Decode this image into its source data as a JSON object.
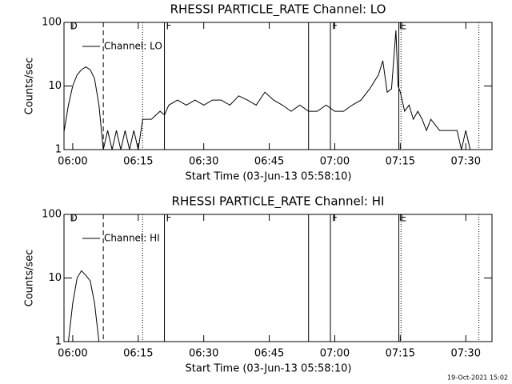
{
  "chart_data": [
    {
      "type": "line",
      "title": "RHESSI PARTICLE_RATE Channel: LO",
      "xlabel": "Start Time (03-Jun-13 05:58:10)",
      "ylabel": "Counts/sec",
      "xlim": [
        "05:58",
        "07:36"
      ],
      "xticks": [
        "06:00",
        "06:15",
        "06:30",
        "06:45",
        "07:00",
        "07:15",
        "07:30"
      ],
      "ylim": [
        1,
        100
      ],
      "yticks": [
        1,
        10,
        100
      ],
      "log_y": true,
      "legend": "upper left",
      "x": [
        "05:58",
        "05:59",
        "06:00",
        "06:01",
        "06:02",
        "06:03",
        "06:04",
        "06:05",
        "06:06",
        "06:07",
        "06:08",
        "06:09",
        "06:10",
        "06:11",
        "06:12",
        "06:13",
        "06:14",
        "06:15",
        "06:16",
        "06:18",
        "06:20",
        "06:21",
        "06:22",
        "06:24",
        "06:26",
        "06:28",
        "06:30",
        "06:32",
        "06:34",
        "06:36",
        "06:38",
        "06:40",
        "06:42",
        "06:44",
        "06:46",
        "06:48",
        "06:50",
        "06:52",
        "06:54",
        "06:56",
        "06:58",
        "07:00",
        "07:02",
        "07:04",
        "07:06",
        "07:08",
        "07:10",
        "07:11",
        "07:12",
        "07:13",
        "07:14",
        "07:14:30",
        "07:15",
        "07:16",
        "07:17",
        "07:18",
        "07:19",
        "07:20",
        "07:21",
        "07:22",
        "07:24",
        "07:26",
        "07:28",
        "07:29",
        "07:30",
        "07:31"
      ],
      "series": [
        {
          "name": "Channel: LO",
          "color": "#000000",
          "values": [
            1.9,
            5,
            10,
            15,
            18,
            20,
            18,
            13,
            5,
            1,
            2,
            1,
            2,
            1,
            2,
            1,
            2,
            1,
            3,
            3,
            4,
            3.5,
            5,
            6,
            5,
            6,
            5,
            6,
            6,
            5,
            7,
            6,
            5,
            8,
            6,
            5,
            4,
            5,
            4,
            4,
            5,
            4,
            4,
            5,
            6,
            9,
            15,
            25,
            8,
            9,
            75,
            10,
            8,
            4,
            5,
            3,
            4,
            3,
            2,
            3,
            2,
            2,
            2,
            1,
            2,
            1
          ]
        }
      ],
      "annotations": [
        {
          "x": "05:59",
          "label": "D"
        },
        {
          "x": "06:21",
          "label": "F"
        },
        {
          "x": "06:59",
          "label": "F"
        },
        {
          "x": "07:14:40",
          "label": "E"
        }
      ],
      "vlines": [
        {
          "x": "06:07",
          "style": "dashed"
        },
        {
          "x": "06:16",
          "style": "dotted"
        },
        {
          "x": "06:21",
          "style": "solid"
        },
        {
          "x": "06:54",
          "style": "solid"
        },
        {
          "x": "06:59",
          "style": "solid"
        },
        {
          "x": "07:14:40",
          "style": "solid"
        },
        {
          "x": "07:15:10",
          "style": "dotted"
        },
        {
          "x": "07:33",
          "style": "dotted"
        }
      ]
    },
    {
      "type": "line",
      "title": "RHESSI PARTICLE_RATE Channel: HI",
      "xlabel": "Start Time (03-Jun-13 05:58:10)",
      "ylabel": "Counts/sec",
      "xlim": [
        "05:58",
        "07:36"
      ],
      "xticks": [
        "06:00",
        "06:15",
        "06:30",
        "06:45",
        "07:00",
        "07:15",
        "07:30"
      ],
      "ylim": [
        1,
        100
      ],
      "yticks": [
        1,
        10,
        100
      ],
      "log_y": true,
      "legend": "upper left",
      "x": [
        "05:59",
        "06:00",
        "06:01",
        "06:02",
        "06:03",
        "06:04",
        "06:05",
        "06:06"
      ],
      "series": [
        {
          "name": "Channel: HI",
          "color": "#000000",
          "values": [
            1,
            4,
            10,
            13,
            11,
            9,
            4,
            1
          ]
        }
      ],
      "annotations": [
        {
          "x": "05:59",
          "label": "D"
        },
        {
          "x": "06:21",
          "label": "F"
        },
        {
          "x": "06:59",
          "label": "F"
        },
        {
          "x": "07:14:40",
          "label": "E"
        }
      ],
      "vlines": [
        {
          "x": "06:07",
          "style": "dashed"
        },
        {
          "x": "06:16",
          "style": "dotted"
        },
        {
          "x": "06:21",
          "style": "solid"
        },
        {
          "x": "06:54",
          "style": "solid"
        },
        {
          "x": "06:59",
          "style": "solid"
        },
        {
          "x": "07:14:40",
          "style": "solid"
        },
        {
          "x": "07:15:10",
          "style": "dotted"
        },
        {
          "x": "07:33",
          "style": "dotted"
        }
      ]
    }
  ],
  "footer": "19-Oct-2021 15:02"
}
